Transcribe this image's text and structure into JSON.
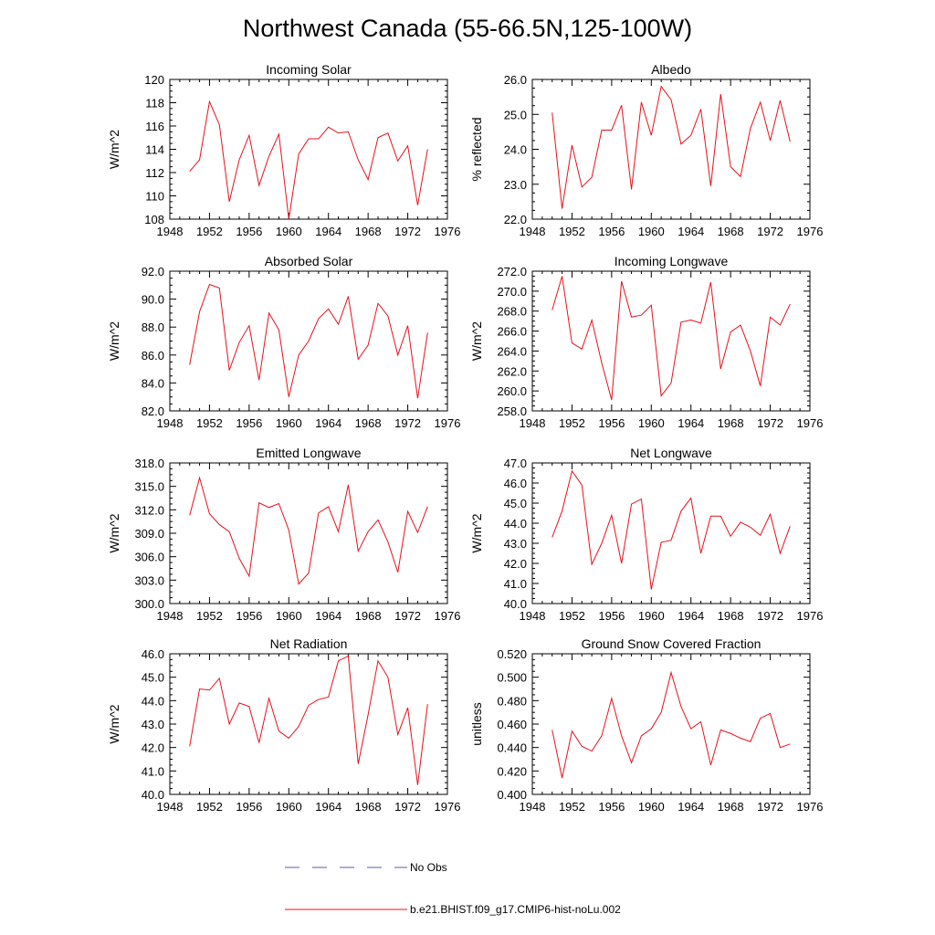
{
  "title": "Northwest Canada (55-66.5N,125-100W)",
  "legend": [
    {
      "label": "No Obs",
      "style": "dashed",
      "color": "#5a5ab4"
    },
    {
      "label": "b.e21.BHIST.f09_g17.CMIP6-hist-noLu.002",
      "style": "solid",
      "color": "#e8101a"
    }
  ],
  "chart_data": [
    {
      "type": "line",
      "title": "Incoming Solar",
      "ylabel": "W/m^2",
      "xlim": [
        1948,
        1976
      ],
      "xticks": [
        "1948",
        "1952",
        "1956",
        "1960",
        "1964",
        "1968",
        "1972",
        "1976"
      ],
      "ylim": [
        108,
        120
      ],
      "yticks": [
        "108",
        "110",
        "112",
        "114",
        "116",
        "118",
        "120"
      ],
      "x": [
        1950,
        1951,
        1952,
        1953,
        1954,
        1955,
        1956,
        1957,
        1958,
        1959,
        1960,
        1961,
        1962,
        1963,
        1964,
        1965,
        1966,
        1967,
        1968,
        1969,
        1970,
        1971,
        1972,
        1973,
        1974
      ],
      "series": [
        {
          "values": [
            112.1,
            113.1,
            118.1,
            116.1,
            109.5,
            113.1,
            115.2,
            110.9,
            113.4,
            115.3,
            108.0,
            113.6,
            114.9,
            114.9,
            115.9,
            115.4,
            115.5,
            113.1,
            111.4,
            115.0,
            115.4,
            113.0,
            114.3,
            109.2,
            114.0
          ]
        }
      ]
    },
    {
      "type": "line",
      "title": "Albedo",
      "ylabel": "% reflected",
      "xlim": [
        1948,
        1976
      ],
      "xticks": [
        "1948",
        "1952",
        "1956",
        "1960",
        "1964",
        "1968",
        "1972",
        "1976"
      ],
      "ylim": [
        22.0,
        26.0
      ],
      "yticks": [
        "22.0",
        "23.0",
        "24.0",
        "25.0",
        "26.0"
      ],
      "x": [
        1950,
        1951,
        1952,
        1953,
        1954,
        1955,
        1956,
        1957,
        1958,
        1959,
        1960,
        1961,
        1962,
        1963,
        1964,
        1965,
        1966,
        1967,
        1968,
        1969,
        1970,
        1971,
        1972,
        1973,
        1974
      ],
      "series": [
        {
          "values": [
            25.05,
            22.3,
            24.12,
            22.92,
            23.2,
            24.55,
            24.55,
            25.26,
            22.85,
            25.35,
            24.4,
            25.8,
            25.42,
            24.15,
            24.4,
            25.15,
            22.95,
            25.58,
            23.5,
            23.22,
            24.6,
            25.35,
            24.25,
            25.4,
            24.22
          ]
        }
      ]
    },
    {
      "type": "line",
      "title": "Absorbed Solar",
      "ylabel": "W/m^2",
      "xlim": [
        1948,
        1976
      ],
      "xticks": [
        "1948",
        "1952",
        "1956",
        "1960",
        "1964",
        "1968",
        "1972",
        "1976"
      ],
      "ylim": [
        82.0,
        92.0
      ],
      "yticks": [
        "82.0",
        "84.0",
        "86.0",
        "88.0",
        "90.0",
        "92.0"
      ],
      "x": [
        1950,
        1951,
        1952,
        1953,
        1954,
        1955,
        1956,
        1957,
        1958,
        1959,
        1960,
        1961,
        1962,
        1963,
        1964,
        1965,
        1966,
        1967,
        1968,
        1969,
        1970,
        1971,
        1972,
        1973,
        1974
      ],
      "series": [
        {
          "values": [
            85.3,
            89.1,
            91.05,
            90.8,
            84.9,
            86.9,
            88.1,
            84.2,
            89.0,
            87.8,
            83.0,
            86.0,
            87.0,
            88.6,
            89.3,
            88.2,
            90.2,
            85.7,
            86.7,
            89.7,
            88.8,
            86.0,
            88.1,
            82.9,
            87.6
          ]
        }
      ]
    },
    {
      "type": "line",
      "title": "Incoming Longwave",
      "ylabel": "W/m^2",
      "xlim": [
        1948,
        1976
      ],
      "xticks": [
        "1948",
        "1952",
        "1956",
        "1960",
        "1964",
        "1968",
        "1972",
        "1976"
      ],
      "ylim": [
        258.0,
        272.0
      ],
      "yticks": [
        "258.0",
        "260.0",
        "262.0",
        "264.0",
        "266.0",
        "268.0",
        "270.0",
        "272.0"
      ],
      "x": [
        1950,
        1951,
        1952,
        1953,
        1954,
        1955,
        1956,
        1957,
        1958,
        1959,
        1960,
        1961,
        1962,
        1963,
        1964,
        1965,
        1966,
        1967,
        1968,
        1969,
        1970,
        1971,
        1972,
        1973,
        1974
      ],
      "series": [
        {
          "values": [
            268.1,
            271.5,
            264.8,
            264.2,
            267.1,
            262.8,
            259.1,
            271.0,
            267.4,
            267.6,
            268.6,
            259.5,
            260.8,
            266.9,
            267.1,
            266.8,
            270.9,
            262.2,
            265.9,
            266.6,
            264.0,
            260.5,
            267.4,
            266.6,
            268.7
          ]
        }
      ]
    },
    {
      "type": "line",
      "title": "Emitted Longwave",
      "ylabel": "W/m^2",
      "xlim": [
        1948,
        1976
      ],
      "xticks": [
        "1948",
        "1952",
        "1956",
        "1960",
        "1964",
        "1968",
        "1972",
        "1976"
      ],
      "ylim": [
        300.0,
        318.0
      ],
      "yticks": [
        "300.0",
        "303.0",
        "306.0",
        "309.0",
        "312.0",
        "315.0",
        "318.0"
      ],
      "x": [
        1950,
        1951,
        1952,
        1953,
        1954,
        1955,
        1956,
        1957,
        1958,
        1959,
        1960,
        1961,
        1962,
        1963,
        1964,
        1965,
        1966,
        1967,
        1968,
        1969,
        1970,
        1971,
        1972,
        1973,
        1974
      ],
      "series": [
        {
          "values": [
            311.3,
            316.1,
            311.5,
            310.1,
            309.2,
            305.8,
            303.5,
            312.9,
            312.3,
            312.8,
            309.4,
            302.5,
            303.9,
            311.6,
            312.4,
            309.2,
            315.2,
            306.7,
            309.2,
            310.7,
            307.9,
            304.0,
            311.8,
            309.1,
            312.4
          ]
        }
      ]
    },
    {
      "type": "line",
      "title": "Net Longwave",
      "ylabel": "W/m^2",
      "xlim": [
        1948,
        1976
      ],
      "xticks": [
        "1948",
        "1952",
        "1956",
        "1960",
        "1964",
        "1968",
        "1972",
        "1976"
      ],
      "ylim": [
        40.0,
        47.0
      ],
      "yticks": [
        "40.0",
        "41.0",
        "42.0",
        "43.0",
        "44.0",
        "45.0",
        "46.0",
        "47.0"
      ],
      "x": [
        1950,
        1951,
        1952,
        1953,
        1954,
        1955,
        1956,
        1957,
        1958,
        1959,
        1960,
        1961,
        1962,
        1963,
        1964,
        1965,
        1966,
        1967,
        1968,
        1969,
        1970,
        1971,
        1972,
        1973,
        1974
      ],
      "series": [
        {
          "values": [
            43.3,
            44.6,
            46.6,
            45.9,
            41.95,
            43.0,
            44.4,
            42.0,
            44.95,
            45.2,
            40.7,
            43.05,
            43.15,
            44.6,
            45.25,
            42.5,
            44.35,
            44.35,
            43.35,
            44.05,
            43.8,
            43.4,
            44.45,
            42.5,
            43.85
          ]
        }
      ]
    },
    {
      "type": "line",
      "title": "Net Radiation",
      "ylabel": "W/m^2",
      "xlim": [
        1948,
        1976
      ],
      "xticks": [
        "1948",
        "1952",
        "1956",
        "1960",
        "1964",
        "1968",
        "1972",
        "1976"
      ],
      "ylim": [
        40.0,
        46.0
      ],
      "yticks": [
        "40.0",
        "41.0",
        "42.0",
        "43.0",
        "44.0",
        "45.0",
        "46.0"
      ],
      "x": [
        1950,
        1951,
        1952,
        1953,
        1954,
        1955,
        1956,
        1957,
        1958,
        1959,
        1960,
        1961,
        1962,
        1963,
        1964,
        1965,
        1966,
        1967,
        1968,
        1969,
        1970,
        1971,
        1972,
        1973,
        1974
      ],
      "series": [
        {
          "values": [
            42.05,
            44.5,
            44.45,
            44.95,
            43.0,
            43.9,
            43.75,
            42.2,
            44.1,
            42.7,
            42.4,
            42.9,
            43.8,
            44.05,
            44.15,
            45.7,
            45.9,
            41.3,
            43.4,
            45.7,
            45.0,
            42.55,
            43.7,
            40.4,
            43.85
          ]
        }
      ]
    },
    {
      "type": "line",
      "title": "Ground Snow Covered Fraction",
      "ylabel": "unitless",
      "xlim": [
        1948,
        1976
      ],
      "xticks": [
        "1948",
        "1952",
        "1956",
        "1960",
        "1964",
        "1968",
        "1972",
        "1976"
      ],
      "ylim": [
        0.4,
        0.52
      ],
      "yticks": [
        "0.400",
        "0.420",
        "0.440",
        "0.460",
        "0.480",
        "0.500",
        "0.520"
      ],
      "x": [
        1950,
        1951,
        1952,
        1953,
        1954,
        1955,
        1956,
        1957,
        1958,
        1959,
        1960,
        1961,
        1962,
        1963,
        1964,
        1965,
        1966,
        1967,
        1968,
        1969,
        1970,
        1971,
        1972,
        1973,
        1974
      ],
      "series": [
        {
          "values": [
            0.455,
            0.414,
            0.454,
            0.441,
            0.437,
            0.45,
            0.482,
            0.45,
            0.427,
            0.45,
            0.456,
            0.47,
            0.504,
            0.475,
            0.456,
            0.462,
            0.425,
            0.455,
            0.452,
            0.448,
            0.445,
            0.465,
            0.469,
            0.44,
            0.443
          ]
        }
      ]
    }
  ]
}
